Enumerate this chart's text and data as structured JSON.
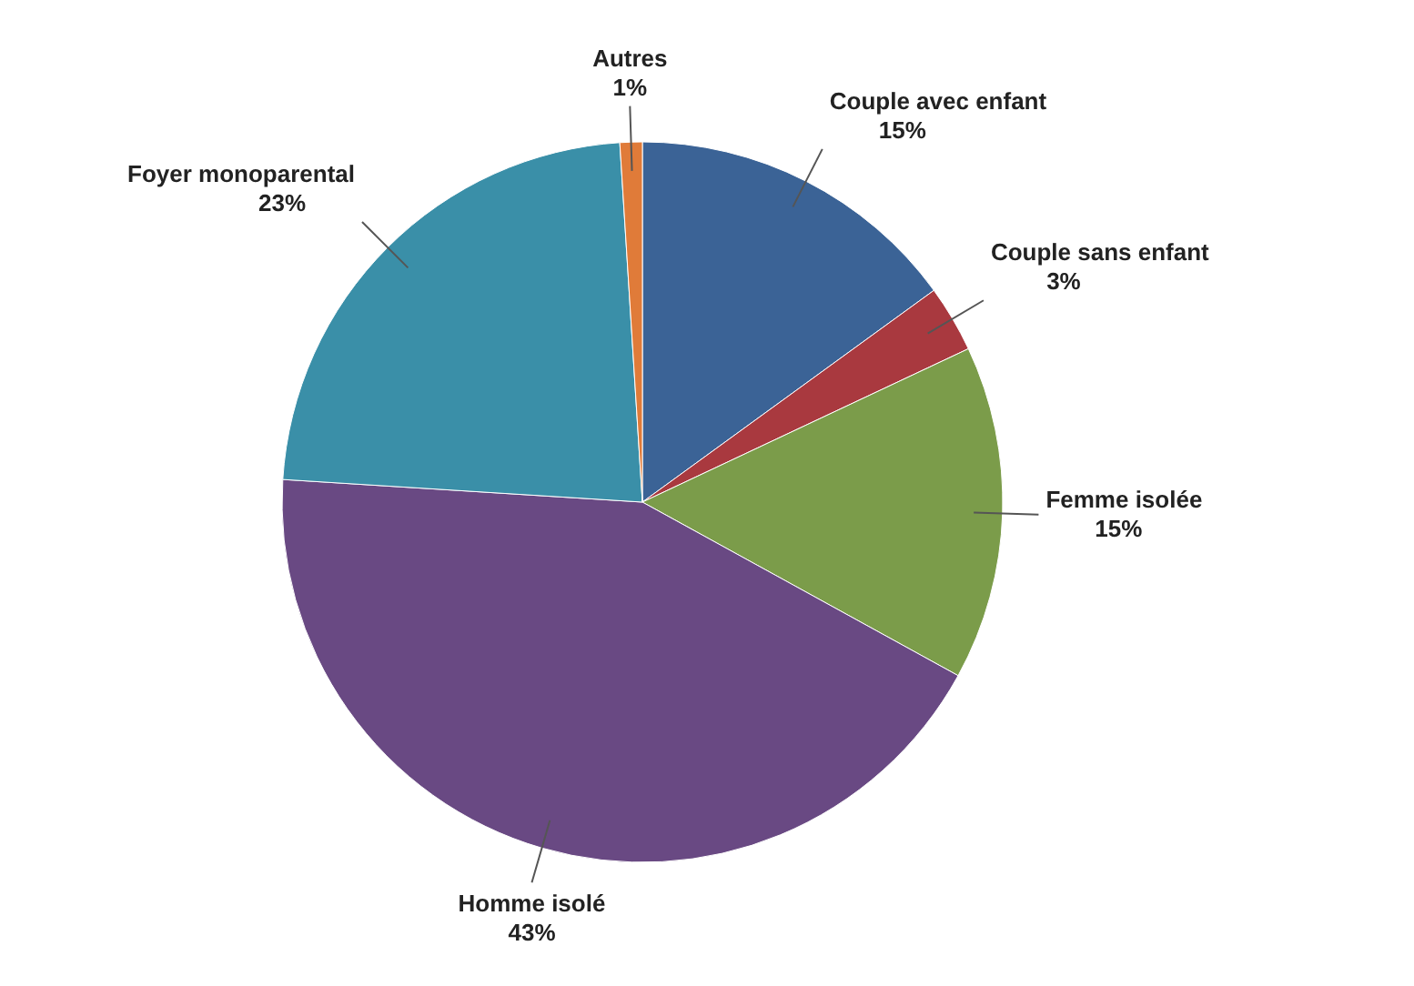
{
  "chart_data": {
    "type": "pie",
    "categories": [
      "Couple avec enfant",
      "Couple sans enfant",
      "Femme isolée",
      "Homme isolé",
      "Foyer monoparental",
      "Autres"
    ],
    "values": [
      15,
      3,
      15,
      43,
      23,
      1
    ],
    "value_labels": [
      "15%",
      "3%",
      "15%",
      "43%",
      "23%",
      "1%"
    ],
    "colors": [
      "#3b6396",
      "#a9393f",
      "#7b9c4a",
      "#694983",
      "#3a8fa8",
      "#e07b39"
    ]
  }
}
